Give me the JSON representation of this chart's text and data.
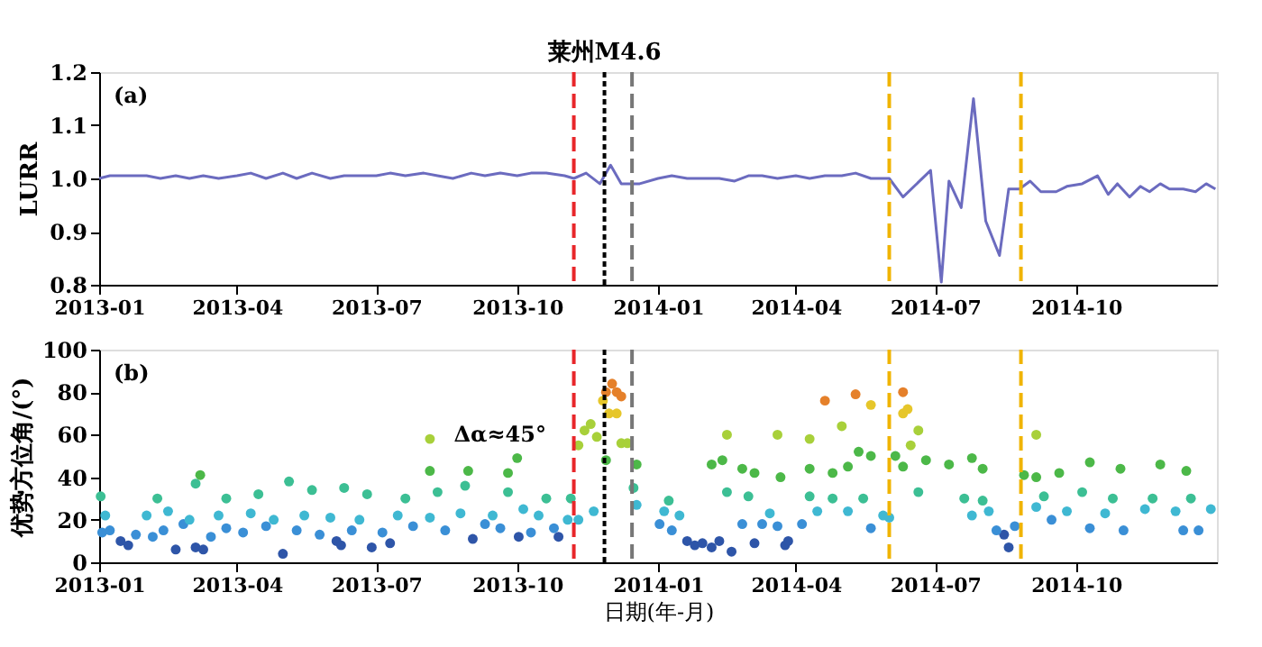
{
  "chart_data": [
    {
      "type": "line",
      "ylabel": "LURR",
      "xlim": [
        "2013-01-01",
        "2015-01-01"
      ],
      "xticks": [
        {
          "value": "2013-01-01",
          "label": "2013-01"
        },
        {
          "value": "2013-04-01",
          "label": "2013-04"
        },
        {
          "value": "2013-07-01",
          "label": "2013-07"
        },
        {
          "value": "2013-10-01",
          "label": "2013-10"
        },
        {
          "value": "2014-01-01",
          "label": "2014-01"
        },
        {
          "value": "2014-04-01",
          "label": "2014-04"
        },
        {
          "value": "2014-07-01",
          "label": "2014-07"
        },
        {
          "value": "2014-10-01",
          "label": "2014-10"
        }
      ],
      "ylim": [
        0.8,
        1.2
      ],
      "yticks": [
        0.8,
        0.9,
        {
          "value": 1,
          "label": "1.0"
        },
        1.1,
        1.2
      ],
      "grid": false,
      "legend": false,
      "marker": "none",
      "line_style": "solid",
      "annotations": [
        "(a)"
      ],
      "ref_lines": [
        {
          "axis": "x",
          "value": "2013-11-07",
          "label": null,
          "color": "#e8262a",
          "line_style": "dashed"
        },
        {
          "axis": "x",
          "value": "2013-11-27",
          "label": "莱州M4.6",
          "color": "#000000",
          "line_style": "dotted"
        },
        {
          "axis": "x",
          "value": "2013-12-15",
          "label": null,
          "color": "#777777",
          "line_style": "dashed"
        },
        {
          "axis": "x",
          "value": "2014-06-01",
          "label": null,
          "color": "#f0b400",
          "line_style": "dashed"
        },
        {
          "axis": "x",
          "value": "2014-08-26",
          "label": null,
          "color": "#f0b400",
          "line_style": "dashed"
        }
      ],
      "series": [
        {
          "color": "#6b6bbf",
          "x": [
            "2013-01-01",
            "2013-01-08",
            "2013-01-20",
            "2013-02-01",
            "2013-02-10",
            "2013-02-20",
            "2013-03-01",
            "2013-03-10",
            "2013-03-20",
            "2013-04-01",
            "2013-04-10",
            "2013-04-20",
            "2013-05-01",
            "2013-05-10",
            "2013-05-20",
            "2013-06-01",
            "2013-06-10",
            "2013-06-20",
            "2013-07-01",
            "2013-07-10",
            "2013-07-20",
            "2013-08-01",
            "2013-08-10",
            "2013-08-20",
            "2013-09-01",
            "2013-09-10",
            "2013-09-20",
            "2013-10-01",
            "2013-10-10",
            "2013-10-20",
            "2013-11-01",
            "2013-11-07",
            "2013-11-15",
            "2013-11-24",
            "2013-12-01",
            "2013-12-08",
            "2013-12-20",
            "2014-01-01",
            "2014-01-10",
            "2014-01-20",
            "2014-02-01",
            "2014-02-10",
            "2014-02-20",
            "2014-03-01",
            "2014-03-10",
            "2014-03-20",
            "2014-04-01",
            "2014-04-10",
            "2014-04-20",
            "2014-05-01",
            "2014-05-10",
            "2014-05-20",
            "2014-06-01",
            "2014-06-10",
            "2014-06-28",
            "2014-07-05",
            "2014-07-10",
            "2014-07-18",
            "2014-07-26",
            "2014-08-03",
            "2014-08-12",
            "2014-08-18",
            "2014-08-25",
            "2014-09-01",
            "2014-09-08",
            "2014-09-18",
            "2014-09-25",
            "2014-10-05",
            "2014-10-15",
            "2014-10-22",
            "2014-10-28",
            "2014-11-05",
            "2014-11-12",
            "2014-11-18",
            "2014-11-25",
            "2014-12-01",
            "2014-12-10",
            "2014-12-18",
            "2014-12-25",
            "2014-12-31"
          ],
          "values": [
            1.0,
            1.005,
            1.005,
            1.005,
            1.0,
            1.005,
            1.0,
            1.005,
            1.0,
            1.005,
            1.01,
            1.0,
            1.01,
            1.0,
            1.01,
            1.0,
            1.005,
            1.005,
            1.005,
            1.01,
            1.005,
            1.01,
            1.005,
            1.0,
            1.01,
            1.005,
            1.01,
            1.005,
            1.01,
            1.01,
            1.005,
            1.0,
            1.01,
            0.99,
            1.025,
            0.99,
            0.99,
            1.0,
            1.005,
            1.0,
            1.0,
            1.0,
            0.995,
            1.005,
            1.005,
            1.0,
            1.005,
            1.0,
            1.005,
            1.005,
            1.01,
            1.0,
            1.0,
            0.965,
            1.015,
            0.805,
            0.995,
            0.945,
            1.15,
            0.92,
            0.855,
            0.98,
            0.98,
            0.995,
            0.975,
            0.975,
            0.985,
            0.99,
            1.005,
            0.97,
            0.99,
            0.965,
            0.985,
            0.975,
            0.99,
            0.98,
            0.98,
            0.975,
            0.99,
            0.98
          ]
        }
      ]
    },
    {
      "type": "scatter",
      "ylabel": "优势方位角/(°)",
      "xlabel": "日期(年-月)",
      "xlim": [
        "2013-01-01",
        "2015-01-01"
      ],
      "xticks": [
        {
          "value": "2013-01-01",
          "label": "2013-01"
        },
        {
          "value": "2013-04-01",
          "label": "2013-04"
        },
        {
          "value": "2013-07-01",
          "label": "2013-07"
        },
        {
          "value": "2013-10-01",
          "label": "2013-10"
        },
        {
          "value": "2014-01-01",
          "label": "2014-01"
        },
        {
          "value": "2014-04-01",
          "label": "2014-04"
        },
        {
          "value": "2014-07-01",
          "label": "2014-07"
        },
        {
          "value": "2014-10-01",
          "label": "2014-10"
        }
      ],
      "ylim": [
        0,
        100
      ],
      "yticks": [
        0,
        20,
        40,
        60,
        80,
        100
      ],
      "grid": false,
      "legend": false,
      "marker": "circle",
      "annotations": [
        "(b)",
        "Δα≈45°"
      ],
      "ref_lines": [
        {
          "axis": "x",
          "value": "2013-11-07",
          "label": null,
          "color": "#e8262a",
          "line_style": "dashed"
        },
        {
          "axis": "x",
          "value": "2013-11-27",
          "label": null,
          "color": "#000000",
          "line_style": "dotted"
        },
        {
          "axis": "x",
          "value": "2013-12-15",
          "label": null,
          "color": "#777777",
          "line_style": "dashed"
        },
        {
          "axis": "x",
          "value": "2014-06-01",
          "label": null,
          "color": "#f0b400",
          "line_style": "dashed"
        },
        {
          "axis": "x",
          "value": "2014-08-26",
          "label": null,
          "color": "#f0b400",
          "line_style": "dashed"
        }
      ],
      "series": [
        {
          "color": "#2e55a8",
          "x": [
            "2013-01-15",
            "2013-01-20",
            "2013-02-20",
            "2013-03-05",
            "2013-03-10",
            "2013-05-01",
            "2013-06-05",
            "2013-06-08",
            "2013-06-28",
            "2013-07-10",
            "2013-09-02",
            "2013-10-02",
            "2013-10-28",
            "2014-01-20",
            "2014-01-25",
            "2014-01-30",
            "2014-02-05",
            "2014-02-10",
            "2014-02-18",
            "2014-03-05",
            "2014-03-25",
            "2014-03-27",
            "2014-08-18",
            "2014-08-15"
          ],
          "values": [
            10,
            8,
            6,
            7,
            6,
            4,
            10,
            8,
            7,
            9,
            11,
            12,
            12,
            10,
            8,
            9,
            7,
            10,
            5,
            9,
            8,
            10,
            7,
            13
          ]
        },
        {
          "color": "#3a8fd6",
          "x": [
            "2013-01-03",
            "2013-01-08",
            "2013-01-25",
            "2013-02-05",
            "2013-02-12",
            "2013-02-25",
            "2013-03-15",
            "2013-03-25",
            "2013-04-05",
            "2013-04-20",
            "2013-05-10",
            "2013-05-25",
            "2013-06-15",
            "2013-07-05",
            "2013-07-25",
            "2013-08-15",
            "2013-09-10",
            "2013-09-20",
            "2013-10-10",
            "2013-10-25",
            "2014-01-02",
            "2014-01-10",
            "2014-02-25",
            "2014-03-10",
            "2014-03-20",
            "2014-04-05",
            "2014-05-20",
            "2014-08-10",
            "2014-08-22",
            "2014-09-15",
            "2014-10-10",
            "2014-11-01",
            "2014-12-10",
            "2014-12-20"
          ],
          "values": [
            14,
            15,
            13,
            12,
            15,
            18,
            12,
            16,
            14,
            17,
            15,
            13,
            15,
            14,
            17,
            15,
            18,
            16,
            14,
            16,
            18,
            15,
            18,
            18,
            17,
            18,
            16,
            15,
            17,
            20,
            16,
            15,
            15,
            15
          ]
        },
        {
          "color": "#3fb8d2",
          "x": [
            "2013-01-05",
            "2013-02-01",
            "2013-02-15",
            "2013-03-01",
            "2013-03-20",
            "2013-04-10",
            "2013-04-25",
            "2013-05-15",
            "2013-06-01",
            "2013-06-20",
            "2013-07-15",
            "2013-08-05",
            "2013-08-25",
            "2013-09-15",
            "2013-10-05",
            "2013-10-15",
            "2013-11-03",
            "2013-11-10",
            "2013-11-20",
            "2013-12-18",
            "2014-01-05",
            "2014-01-15",
            "2014-03-15",
            "2014-04-15",
            "2014-05-05",
            "2014-05-28",
            "2014-06-01",
            "2014-07-25",
            "2014-08-05",
            "2014-09-05",
            "2014-09-25",
            "2014-10-20",
            "2014-11-15",
            "2014-12-05",
            "2014-12-28"
          ],
          "values": [
            22,
            22,
            24,
            20,
            22,
            23,
            20,
            22,
            21,
            20,
            22,
            21,
            23,
            22,
            25,
            22,
            20,
            20,
            24,
            27,
            24,
            22,
            23,
            24,
            24,
            22,
            21,
            22,
            24,
            26,
            24,
            23,
            25,
            24,
            25
          ]
        },
        {
          "color": "#3cbf94",
          "x": [
            "2013-01-02",
            "2013-02-08",
            "2013-03-05",
            "2013-03-25",
            "2013-04-15",
            "2013-05-05",
            "2013-05-20",
            "2013-06-10",
            "2013-06-25",
            "2013-07-20",
            "2013-08-10",
            "2013-08-28",
            "2013-09-25",
            "2013-10-20",
            "2013-11-05",
            "2013-12-16",
            "2014-01-08",
            "2014-02-15",
            "2014-03-01",
            "2014-04-10",
            "2014-04-25",
            "2014-05-15",
            "2014-06-20",
            "2014-07-20",
            "2014-08-01",
            "2014-09-10",
            "2014-10-05",
            "2014-10-25",
            "2014-11-20",
            "2014-12-15"
          ],
          "values": [
            31,
            30,
            37,
            30,
            32,
            38,
            34,
            35,
            32,
            30,
            33,
            36,
            33,
            30,
            30,
            35,
            29,
            33,
            31,
            31,
            30,
            30,
            33,
            30,
            29,
            31,
            33,
            30,
            30,
            30
          ]
        },
        {
          "color": "#4cb848",
          "x": [
            "2013-03-08",
            "2013-08-05",
            "2013-08-30",
            "2013-10-01",
            "2013-09-25",
            "2013-11-28",
            "2013-12-18",
            "2014-02-05",
            "2014-02-12",
            "2014-02-25",
            "2014-03-05",
            "2014-03-22",
            "2014-04-10",
            "2014-04-25",
            "2014-05-05",
            "2014-05-12",
            "2014-05-20",
            "2014-06-05",
            "2014-06-10",
            "2014-06-25",
            "2014-07-10",
            "2014-07-25",
            "2014-08-01",
            "2014-08-28",
            "2014-09-05",
            "2014-09-20",
            "2014-10-10",
            "2014-10-30",
            "2014-11-25",
            "2014-12-12"
          ],
          "values": [
            41,
            43,
            43,
            49,
            42,
            48,
            46,
            46,
            48,
            44,
            42,
            40,
            44,
            42,
            45,
            52,
            50,
            50,
            45,
            48,
            46,
            49,
            44,
            41,
            40,
            42,
            47,
            44,
            46,
            43
          ]
        },
        {
          "color": "#a8d03a",
          "x": [
            "2013-08-05",
            "2013-11-10",
            "2013-11-14",
            "2013-11-18",
            "2013-11-22",
            "2013-12-08",
            "2013-12-12",
            "2014-02-15",
            "2014-03-20",
            "2014-04-10",
            "2014-05-01",
            "2014-06-20",
            "2014-09-05",
            "2014-06-15"
          ],
          "values": [
            58,
            55,
            62,
            65,
            59,
            56,
            56,
            60,
            60,
            58,
            64,
            62,
            60,
            55
          ]
        },
        {
          "color": "#e6c62a",
          "x": [
            "2013-11-30",
            "2013-12-05",
            "2013-11-26",
            "2014-05-20",
            "2014-06-10",
            "2014-06-13"
          ],
          "values": [
            70,
            70,
            76,
            74,
            70,
            72
          ]
        },
        {
          "color": "#e5802a",
          "x": [
            "2013-11-28",
            "2013-12-02",
            "2013-12-05",
            "2013-12-08",
            "2014-04-20",
            "2014-05-10",
            "2014-06-10"
          ],
          "values": [
            80,
            84,
            80,
            78,
            76,
            79,
            80
          ]
        }
      ]
    }
  ]
}
